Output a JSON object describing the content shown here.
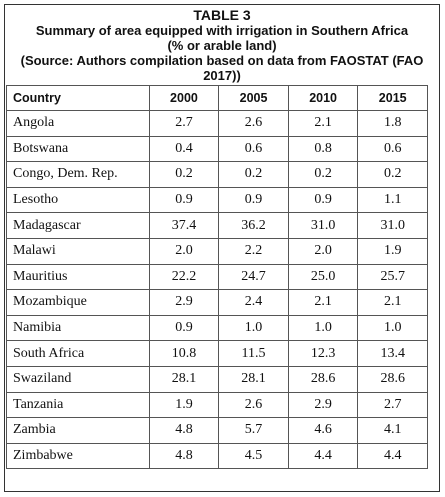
{
  "caption": {
    "title": "TABLE 3",
    "subtitle": "Summary of area equipped with irrigation in Southern Africa",
    "units": "(% or arable land)",
    "source": "(Source: Authors compilation based on data from FAOSTAT (FAO 2017))"
  },
  "table": {
    "headers": [
      "Country",
      "2000",
      "2005",
      "2010",
      "2015"
    ],
    "rows": [
      [
        "Angola",
        "2.7",
        "2.6",
        "2.1",
        "1.8"
      ],
      [
        "Botswana",
        "0.4",
        "0.6",
        "0.8",
        "0.6"
      ],
      [
        "Congo, Dem. Rep.",
        "0.2",
        "0.2",
        "0.2",
        "0.2"
      ],
      [
        "Lesotho",
        "0.9",
        "0.9",
        "0.9",
        "1.1"
      ],
      [
        "Madagascar",
        "37.4",
        "36.2",
        "31.0",
        "31.0"
      ],
      [
        "Malawi",
        "2.0",
        "2.2",
        "2.0",
        "1.9"
      ],
      [
        "Mauritius",
        "22.2",
        "24.7",
        "25.0",
        "25.7"
      ],
      [
        "Mozambique",
        "2.9",
        "2.4",
        "2.1",
        "2.1"
      ],
      [
        "Namibia",
        "0.9",
        "1.0",
        "1.0",
        "1.0"
      ],
      [
        "South Africa",
        "10.8",
        "11.5",
        "12.3",
        "13.4"
      ],
      [
        "Swaziland",
        "28.1",
        "28.1",
        "28.6",
        "28.6"
      ],
      [
        "Tanzania",
        "1.9",
        "2.6",
        "2.9",
        "2.7"
      ],
      [
        "Zambia",
        "4.8",
        "5.7",
        "4.6",
        "4.1"
      ],
      [
        "Zimbabwe",
        "4.8",
        "4.5",
        "4.4",
        "4.4"
      ]
    ]
  }
}
